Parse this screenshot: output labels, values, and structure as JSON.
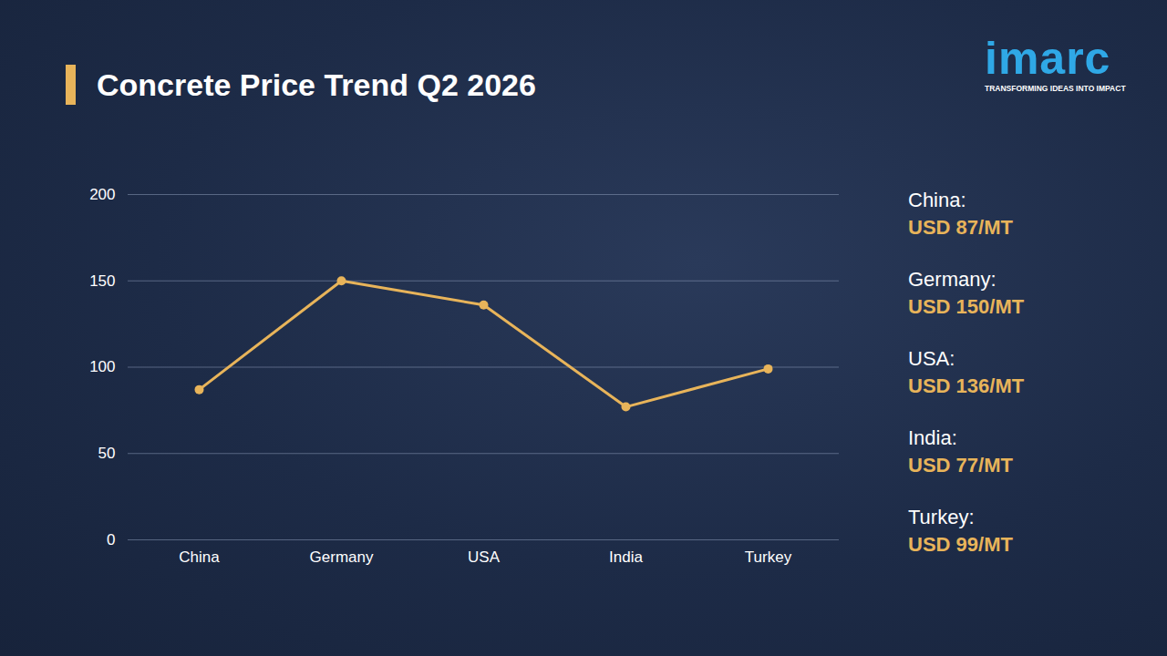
{
  "header": {
    "logo": "imarc",
    "tagline": "TRANSFORMING IDEAS INTO IMPACT"
  },
  "chart_data": {
    "type": "line",
    "title": "Concrete Price Trend Q2 2026",
    "categories": [
      "China",
      "Germany",
      "USA",
      "India",
      "Turkey"
    ],
    "values": [
      87,
      150,
      136,
      77,
      99
    ],
    "value_labels": [
      "USD 87/MT",
      "USD 150/MT",
      "USD 136/MT",
      "USD 77/MT",
      "USD 99/MT"
    ],
    "annotations": [
      "China:",
      "Germany:",
      "USA:",
      "India:",
      "Turkey:"
    ],
    "color": "#e8b45a",
    "marker": "circle",
    "line_style": "solid",
    "ylim": [
      0,
      200
    ],
    "yticks": [
      0,
      50,
      100,
      150,
      200
    ],
    "grid": true
  }
}
